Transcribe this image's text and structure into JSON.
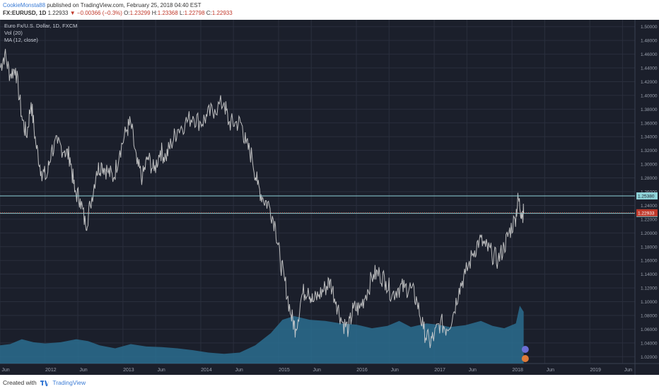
{
  "header": {
    "author": "CookieMonsta88",
    "published": "published on TradingView.com, February 25, 2018 04:40 EST",
    "symbol": "FX:EURUSD, 1D",
    "last": "1.22933",
    "change": "−0.00366 (−0.3%)",
    "o_label": "O:",
    "o_value": "1.23299",
    "h_label": "H:",
    "h_value": "1.23368",
    "l_label": "L:",
    "l_value": "1.22798",
    "c_label": "C:",
    "c_value": "1.22933"
  },
  "legend": {
    "title": "Euro Fx/U.S. Dollar, 1D, FXCM",
    "vol": "Vol (20)",
    "ma": "MA (12, close)"
  },
  "footer": {
    "created_with": "Created with",
    "brand": "TradingView"
  },
  "colors": {
    "background": "#1b1f2b",
    "grid": "#2a2f3d",
    "price_line": "#d0d0d0",
    "volume": "#2a6d8f",
    "hline": "#8fd3d8",
    "last_line": "#c0392b"
  },
  "chart_data": {
    "type": "line",
    "title": "Euro Fx/U.S. Dollar, 1D, FXCM",
    "ylim": [
      1.01,
      1.51
    ],
    "yticks": [
      1.02,
      1.04,
      1.06,
      1.08,
      1.1,
      1.12,
      1.14,
      1.16,
      1.18,
      1.2,
      1.22,
      1.24,
      1.26,
      1.28,
      1.3,
      1.32,
      1.34,
      1.36,
      1.38,
      1.4,
      1.42,
      1.44,
      1.46,
      1.48,
      1.5
    ],
    "ytick_labels": [
      "1.02000",
      "1.04000",
      "1.06000",
      "1.08000",
      "1.10000",
      "1.12000",
      "1.14000",
      "1.16000",
      "1.18000",
      "1.20000",
      "1.22000",
      "1.24000",
      "1.26000",
      "1.28000",
      "1.30000",
      "1.32000",
      "1.34000",
      "1.36000",
      "1.38000",
      "1.40000",
      "1.42000",
      "1.44000",
      "1.46000",
      "1.48000",
      "1.50000"
    ],
    "xlim": [
      2011.42,
      2019.58
    ],
    "xticks": [
      {
        "t": 2011.42,
        "label": "Jun"
      },
      {
        "t": 2012.0,
        "label": "2012"
      },
      {
        "t": 2012.42,
        "label": "Jun"
      },
      {
        "t": 2013.0,
        "label": "2013"
      },
      {
        "t": 2013.42,
        "label": "Jun"
      },
      {
        "t": 2014.0,
        "label": "2014"
      },
      {
        "t": 2014.42,
        "label": "Jun"
      },
      {
        "t": 2015.0,
        "label": "2015"
      },
      {
        "t": 2015.42,
        "label": "Jun"
      },
      {
        "t": 2016.0,
        "label": "2016"
      },
      {
        "t": 2016.42,
        "label": "Jun"
      },
      {
        "t": 2017.0,
        "label": "2017"
      },
      {
        "t": 2017.42,
        "label": "Jun"
      },
      {
        "t": 2018.0,
        "label": "2018"
      },
      {
        "t": 2018.42,
        "label": "Jun"
      },
      {
        "t": 2019.0,
        "label": "2019"
      },
      {
        "t": 2019.42,
        "label": "Jun"
      }
    ],
    "series": [
      {
        "values": [
          [
            2011.42,
            1.44
          ],
          [
            2011.48,
            1.46
          ],
          [
            2011.55,
            1.43
          ],
          [
            2011.62,
            1.44
          ],
          [
            2011.7,
            1.37
          ],
          [
            2011.76,
            1.34
          ],
          [
            2011.82,
            1.39
          ],
          [
            2011.88,
            1.33
          ],
          [
            2011.95,
            1.29
          ],
          [
            2012.02,
            1.28
          ],
          [
            2012.08,
            1.32
          ],
          [
            2012.16,
            1.33
          ],
          [
            2012.25,
            1.32
          ],
          [
            2012.32,
            1.31
          ],
          [
            2012.38,
            1.26
          ],
          [
            2012.45,
            1.25
          ],
          [
            2012.52,
            1.21
          ],
          [
            2012.58,
            1.24
          ],
          [
            2012.66,
            1.29
          ],
          [
            2012.73,
            1.3
          ],
          [
            2012.8,
            1.29
          ],
          [
            2012.88,
            1.28
          ],
          [
            2012.96,
            1.32
          ],
          [
            2013.05,
            1.35
          ],
          [
            2013.1,
            1.36
          ],
          [
            2013.18,
            1.3
          ],
          [
            2013.25,
            1.28
          ],
          [
            2013.32,
            1.31
          ],
          [
            2013.4,
            1.29
          ],
          [
            2013.48,
            1.32
          ],
          [
            2013.55,
            1.31
          ],
          [
            2013.62,
            1.33
          ],
          [
            2013.7,
            1.35
          ],
          [
            2013.8,
            1.36
          ],
          [
            2013.9,
            1.37
          ],
          [
            2014.0,
            1.36
          ],
          [
            2014.08,
            1.37
          ],
          [
            2014.18,
            1.38
          ],
          [
            2014.3,
            1.39
          ],
          [
            2014.36,
            1.36
          ],
          [
            2014.44,
            1.36
          ],
          [
            2014.52,
            1.36
          ],
          [
            2014.58,
            1.33
          ],
          [
            2014.66,
            1.31
          ],
          [
            2014.73,
            1.27
          ],
          [
            2014.8,
            1.25
          ],
          [
            2014.88,
            1.24
          ],
          [
            2014.96,
            1.21
          ],
          [
            2015.02,
            1.16
          ],
          [
            2015.08,
            1.13
          ],
          [
            2015.16,
            1.08
          ],
          [
            2015.22,
            1.06
          ],
          [
            2015.3,
            1.11
          ],
          [
            2015.38,
            1.12
          ],
          [
            2015.44,
            1.1
          ],
          [
            2015.52,
            1.11
          ],
          [
            2015.6,
            1.12
          ],
          [
            2015.66,
            1.13
          ],
          [
            2015.74,
            1.1
          ],
          [
            2015.82,
            1.07
          ],
          [
            2015.9,
            1.06
          ],
          [
            2015.96,
            1.09
          ],
          [
            2016.04,
            1.09
          ],
          [
            2016.12,
            1.11
          ],
          [
            2016.22,
            1.14
          ],
          [
            2016.3,
            1.14
          ],
          [
            2016.38,
            1.13
          ],
          [
            2016.46,
            1.11
          ],
          [
            2016.54,
            1.12
          ],
          [
            2016.62,
            1.12
          ],
          [
            2016.7,
            1.12
          ],
          [
            2016.78,
            1.1
          ],
          [
            2016.86,
            1.06
          ],
          [
            2016.94,
            1.04
          ],
          [
            2017.0,
            1.05
          ],
          [
            2017.08,
            1.07
          ],
          [
            2017.16,
            1.06
          ],
          [
            2017.24,
            1.08
          ],
          [
            2017.32,
            1.12
          ],
          [
            2017.4,
            1.14
          ],
          [
            2017.5,
            1.17
          ],
          [
            2017.58,
            1.19
          ],
          [
            2017.66,
            1.18
          ],
          [
            2017.74,
            1.17
          ],
          [
            2017.82,
            1.16
          ],
          [
            2017.9,
            1.18
          ],
          [
            2017.96,
            1.2
          ],
          [
            2018.04,
            1.22
          ],
          [
            2018.08,
            1.25
          ],
          [
            2018.12,
            1.23
          ],
          [
            2018.15,
            1.229
          ]
        ]
      }
    ],
    "volume_series": [
      [
        2011.42,
        0.3
      ],
      [
        2011.55,
        0.32
      ],
      [
        2011.7,
        0.4
      ],
      [
        2011.85,
        0.35
      ],
      [
        2012.0,
        0.33
      ],
      [
        2012.2,
        0.35
      ],
      [
        2012.4,
        0.4
      ],
      [
        2012.55,
        0.37
      ],
      [
        2012.7,
        0.3
      ],
      [
        2012.9,
        0.25
      ],
      [
        2013.1,
        0.32
      ],
      [
        2013.3,
        0.28
      ],
      [
        2013.5,
        0.27
      ],
      [
        2013.7,
        0.25
      ],
      [
        2013.9,
        0.22
      ],
      [
        2014.1,
        0.18
      ],
      [
        2014.3,
        0.16
      ],
      [
        2014.5,
        0.18
      ],
      [
        2014.7,
        0.3
      ],
      [
        2014.9,
        0.5
      ],
      [
        2015.05,
        0.72
      ],
      [
        2015.2,
        0.78
      ],
      [
        2015.4,
        0.72
      ],
      [
        2015.6,
        0.7
      ],
      [
        2015.8,
        0.66
      ],
      [
        2016.0,
        0.64
      ],
      [
        2016.2,
        0.58
      ],
      [
        2016.4,
        0.62
      ],
      [
        2016.55,
        0.7
      ],
      [
        2016.7,
        0.6
      ],
      [
        2016.9,
        0.66
      ],
      [
        2017.05,
        0.64
      ],
      [
        2017.2,
        0.6
      ],
      [
        2017.4,
        0.63
      ],
      [
        2017.6,
        0.7
      ],
      [
        2017.75,
        0.62
      ],
      [
        2017.9,
        0.58
      ],
      [
        2018.05,
        0.66
      ],
      [
        2018.1,
        0.95
      ],
      [
        2018.15,
        0.85
      ]
    ],
    "horizontal_lines": [
      {
        "value": 1.2538,
        "label": "1.25380"
      },
      {
        "value": 1.22844,
        "label": "1.22844"
      }
    ],
    "last_price": {
      "value": 1.22933,
      "label": "1.22933"
    }
  }
}
